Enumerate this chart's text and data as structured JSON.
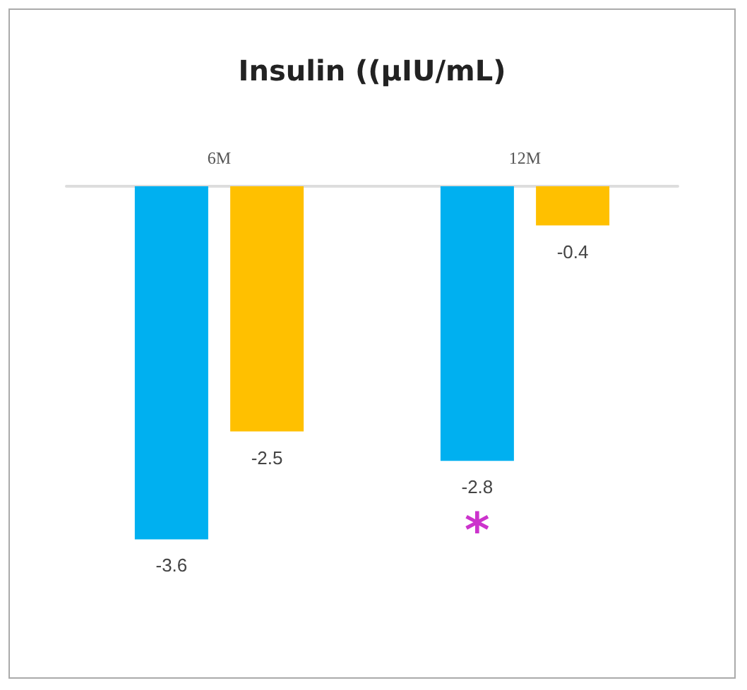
{
  "chart_data": {
    "type": "bar",
    "title": "Insulin ((µIU/mL)",
    "categories": [
      "6M",
      "12M"
    ],
    "series": [
      {
        "color": "#00b0f0",
        "values": [
          -3.6,
          -2.8
        ]
      },
      {
        "color": "#ffc000",
        "values": [
          -2.5,
          -0.4
        ]
      }
    ],
    "data_labels": true,
    "annotations": [
      "*"
    ]
  }
}
